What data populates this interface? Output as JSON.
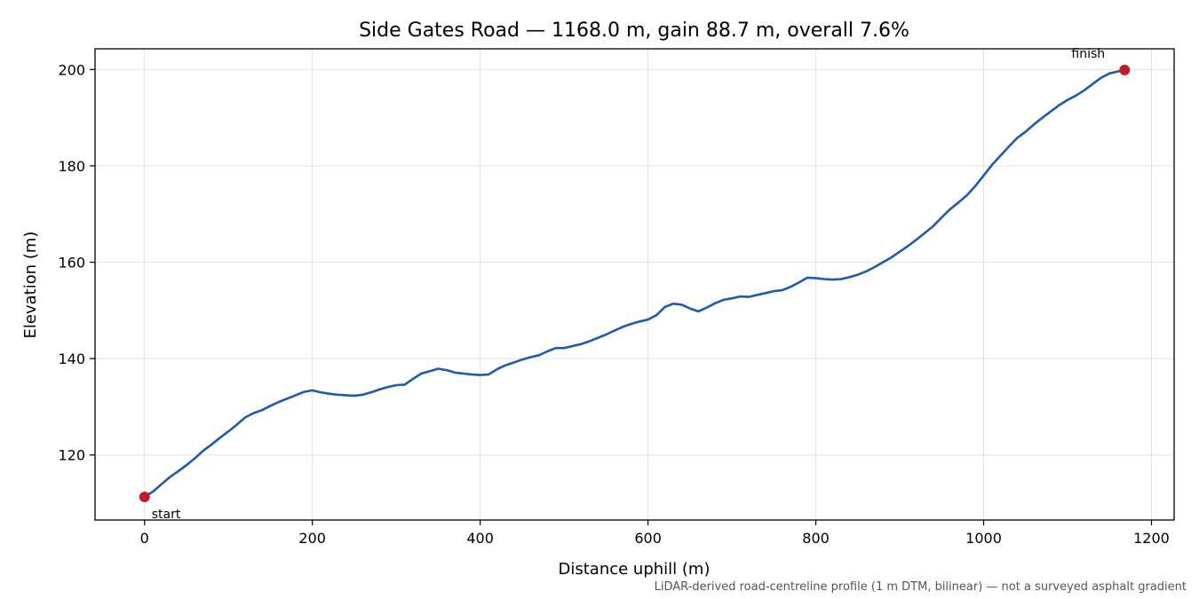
{
  "chart_data": {
    "type": "line",
    "title": "Side Gates Road — 1168.0 m, gain 88.7 m, overall 7.6%",
    "xlabel": "Distance uphill (m)",
    "ylabel": "Elevation (m)",
    "xlim": [
      -59,
      1227
    ],
    "ylim": [
      106.5,
      204.3
    ],
    "xticks": [
      0,
      200,
      400,
      600,
      800,
      1000,
      1200
    ],
    "yticks": [
      120,
      140,
      160,
      180,
      200
    ],
    "grid": true,
    "line_color": "#1f5aab",
    "marker_color": "#c21b2b",
    "series": [
      {
        "x": [
          0,
          10,
          20,
          30,
          40,
          50,
          60,
          70,
          80,
          90,
          100,
          110,
          120,
          130,
          140,
          150,
          160,
          170,
          180,
          190,
          200,
          210,
          220,
          230,
          240,
          250,
          260,
          270,
          280,
          290,
          300,
          310,
          320,
          330,
          340,
          350,
          360,
          370,
          380,
          390,
          400,
          410,
          420,
          430,
          440,
          450,
          460,
          470,
          480,
          490,
          500,
          510,
          520,
          530,
          540,
          550,
          560,
          570,
          580,
          590,
          600,
          610,
          620,
          630,
          640,
          650,
          660,
          670,
          680,
          690,
          700,
          710,
          720,
          730,
          740,
          750,
          760,
          770,
          780,
          790,
          800,
          810,
          820,
          830,
          840,
          850,
          860,
          870,
          880,
          890,
          900,
          910,
          920,
          930,
          940,
          950,
          960,
          970,
          980,
          990,
          1000,
          1010,
          1020,
          1030,
          1040,
          1050,
          1060,
          1070,
          1080,
          1090,
          1100,
          1110,
          1120,
          1130,
          1140,
          1150,
          1160,
          1168
        ],
        "y": [
          111.3,
          112.4,
          113.9,
          115.4,
          116.6,
          117.9,
          119.3,
          120.9,
          122.2,
          123.6,
          124.9,
          126.3,
          127.8,
          128.7,
          129.3,
          130.2,
          131.0,
          131.7,
          132.4,
          133.1,
          133.4,
          133.0,
          132.7,
          132.5,
          132.4,
          132.3,
          132.5,
          133.0,
          133.6,
          134.1,
          134.5,
          134.6,
          135.8,
          136.9,
          137.4,
          137.9,
          137.6,
          137.1,
          136.9,
          136.7,
          136.6,
          136.7,
          137.8,
          138.6,
          139.2,
          139.8,
          140.3,
          140.7,
          141.5,
          142.2,
          142.2,
          142.6,
          143.0,
          143.6,
          144.3,
          145.0,
          145.8,
          146.6,
          147.2,
          147.7,
          148.1,
          149.0,
          150.7,
          151.4,
          151.2,
          150.4,
          149.8,
          150.6,
          151.5,
          152.2,
          152.5,
          152.9,
          152.8,
          153.2,
          153.6,
          154.0,
          154.2,
          154.9,
          155.8,
          156.8,
          156.7,
          156.5,
          156.4,
          156.5,
          156.9,
          157.4,
          158.1,
          159.0,
          160.0,
          161.0,
          162.2,
          163.4,
          164.7,
          166.1,
          167.5,
          169.3,
          171.0,
          172.4,
          173.9,
          175.8,
          178.0,
          180.2,
          182.1,
          184.0,
          185.8,
          187.1,
          188.6,
          190.0,
          191.3,
          192.6,
          193.7,
          194.6,
          195.7,
          197.0,
          198.3,
          199.2,
          199.6,
          199.9
        ]
      }
    ],
    "annotations": {
      "start_label": "start",
      "finish_label": "finish",
      "start_point": {
        "x": 0,
        "y": 111.3
      },
      "finish_point": {
        "x": 1168,
        "y": 199.9
      }
    },
    "footnote": "LiDAR-derived road-centreline profile (1 m DTM, bilinear) — not a surveyed asphalt gradient"
  }
}
